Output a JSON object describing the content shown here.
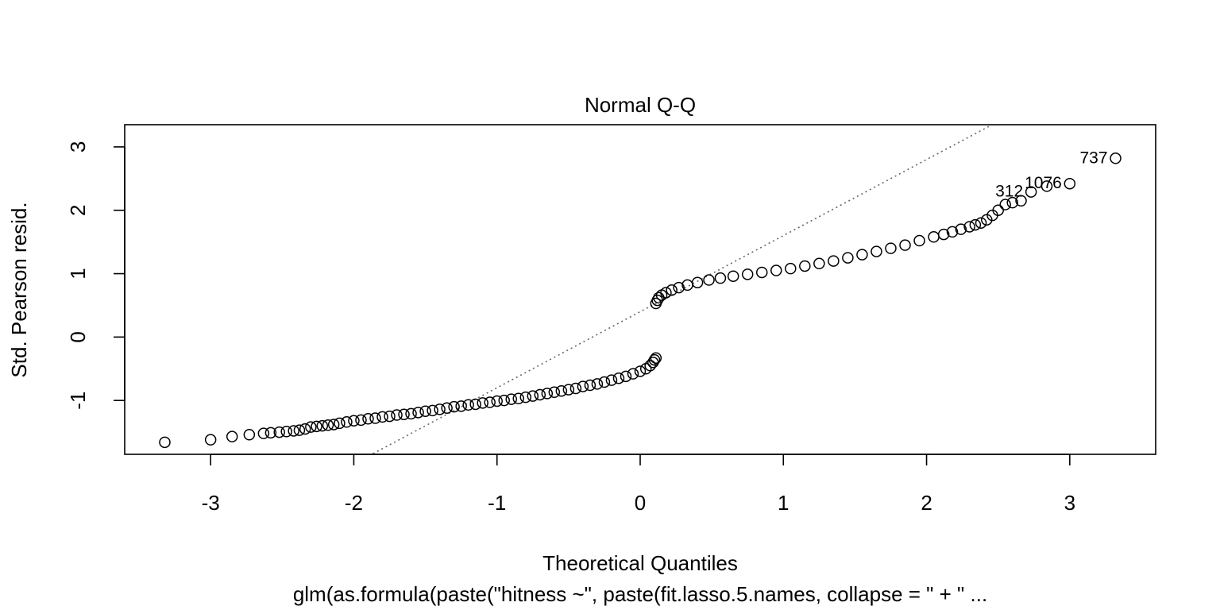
{
  "chart_data": {
    "type": "scatter",
    "title": "Normal Q-Q",
    "xlabel": "Theoretical Quantiles",
    "ylabel": "Std. Pearson resid.",
    "subtitle": "glm(as.formula(paste(\"hitness ~\", paste(fit.lasso.5.names, collapse = \" + \" ...",
    "xlim": [
      -3.6,
      3.6
    ],
    "ylim": [
      -1.85,
      3.35
    ],
    "x_ticks": [
      -3,
      -2,
      -1,
      0,
      1,
      2,
      3
    ],
    "x_tick_labels": [
      "-3",
      "-2",
      "-1",
      "0",
      "1",
      "2",
      "3"
    ],
    "y_ticks": [
      -1,
      0,
      1,
      2,
      3
    ],
    "y_tick_labels": [
      "-1",
      "0",
      "1",
      "2",
      "3"
    ],
    "grid": false,
    "reference_line": {
      "intercept": 0.4,
      "slope": 1.2,
      "style": "dotted",
      "color": "#666666"
    },
    "series": [
      {
        "marker": "open-circle",
        "points": [
          [
            -3.32,
            -1.66
          ],
          [
            -3.0,
            -1.62
          ],
          [
            -2.85,
            -1.57
          ],
          [
            -2.73,
            -1.54
          ],
          [
            -2.63,
            -1.52
          ],
          [
            -2.58,
            -1.51
          ],
          [
            -2.52,
            -1.5
          ],
          [
            -2.47,
            -1.49
          ],
          [
            -2.42,
            -1.48
          ],
          [
            -2.38,
            -1.47
          ],
          [
            -2.34,
            -1.45
          ],
          [
            -2.3,
            -1.42
          ],
          [
            -2.26,
            -1.41
          ],
          [
            -2.22,
            -1.4
          ],
          [
            -2.18,
            -1.39
          ],
          [
            -2.14,
            -1.38
          ],
          [
            -2.1,
            -1.36
          ],
          [
            -2.05,
            -1.34
          ],
          [
            -2.0,
            -1.32
          ],
          [
            -1.95,
            -1.31
          ],
          [
            -1.9,
            -1.29
          ],
          [
            -1.85,
            -1.28
          ],
          [
            -1.8,
            -1.26
          ],
          [
            -1.75,
            -1.25
          ],
          [
            -1.7,
            -1.23
          ],
          [
            -1.65,
            -1.22
          ],
          [
            -1.6,
            -1.21
          ],
          [
            -1.55,
            -1.19
          ],
          [
            -1.5,
            -1.17
          ],
          [
            -1.45,
            -1.16
          ],
          [
            -1.4,
            -1.14
          ],
          [
            -1.35,
            -1.12
          ],
          [
            -1.3,
            -1.1
          ],
          [
            -1.25,
            -1.09
          ],
          [
            -1.2,
            -1.07
          ],
          [
            -1.15,
            -1.06
          ],
          [
            -1.1,
            -1.04
          ],
          [
            -1.05,
            -1.03
          ],
          [
            -1.0,
            -1.01
          ],
          [
            -0.95,
            -1.0
          ],
          [
            -0.9,
            -0.98
          ],
          [
            -0.85,
            -0.97
          ],
          [
            -0.8,
            -0.95
          ],
          [
            -0.75,
            -0.93
          ],
          [
            -0.7,
            -0.91
          ],
          [
            -0.65,
            -0.89
          ],
          [
            -0.6,
            -0.87
          ],
          [
            -0.55,
            -0.85
          ],
          [
            -0.5,
            -0.83
          ],
          [
            -0.45,
            -0.81
          ],
          [
            -0.4,
            -0.78
          ],
          [
            -0.35,
            -0.76
          ],
          [
            -0.3,
            -0.74
          ],
          [
            -0.25,
            -0.71
          ],
          [
            -0.2,
            -0.68
          ],
          [
            -0.15,
            -0.65
          ],
          [
            -0.1,
            -0.62
          ],
          [
            -0.05,
            -0.58
          ],
          [
            0.0,
            -0.54
          ],
          [
            0.04,
            -0.5
          ],
          [
            0.07,
            -0.45
          ],
          [
            0.09,
            -0.4
          ],
          [
            0.1,
            -0.36
          ],
          [
            0.11,
            -0.33
          ],
          [
            0.11,
            0.53
          ],
          [
            0.12,
            0.58
          ],
          [
            0.13,
            0.62
          ],
          [
            0.15,
            0.66
          ],
          [
            0.18,
            0.7
          ],
          [
            0.22,
            0.74
          ],
          [
            0.27,
            0.78
          ],
          [
            0.33,
            0.82
          ],
          [
            0.4,
            0.86
          ],
          [
            0.48,
            0.9
          ],
          [
            0.56,
            0.93
          ],
          [
            0.65,
            0.96
          ],
          [
            0.75,
            0.99
          ],
          [
            0.85,
            1.02
          ],
          [
            0.95,
            1.05
          ],
          [
            1.05,
            1.08
          ],
          [
            1.15,
            1.12
          ],
          [
            1.25,
            1.16
          ],
          [
            1.35,
            1.2
          ],
          [
            1.45,
            1.25
          ],
          [
            1.55,
            1.3
          ],
          [
            1.65,
            1.35
          ],
          [
            1.75,
            1.4
          ],
          [
            1.85,
            1.45
          ],
          [
            1.95,
            1.52
          ],
          [
            2.05,
            1.58
          ],
          [
            2.12,
            1.62
          ],
          [
            2.18,
            1.66
          ],
          [
            2.24,
            1.7
          ],
          [
            2.3,
            1.74
          ],
          [
            2.34,
            1.77
          ],
          [
            2.38,
            1.8
          ],
          [
            2.42,
            1.85
          ],
          [
            2.46,
            1.92
          ],
          [
            2.5,
            2.0
          ],
          [
            2.55,
            2.09
          ],
          [
            2.6,
            2.12
          ],
          [
            2.66,
            2.15
          ],
          [
            2.73,
            2.29
          ],
          [
            2.84,
            2.38
          ],
          [
            3.0,
            2.42
          ],
          [
            3.32,
            2.82
          ]
        ]
      }
    ],
    "annotations": [
      {
        "x": 3.32,
        "y": 2.82,
        "text": "737"
      },
      {
        "x": 3.0,
        "y": 2.42,
        "text": "1076"
      },
      {
        "x": 2.73,
        "y": 2.29,
        "text": "312"
      }
    ]
  }
}
